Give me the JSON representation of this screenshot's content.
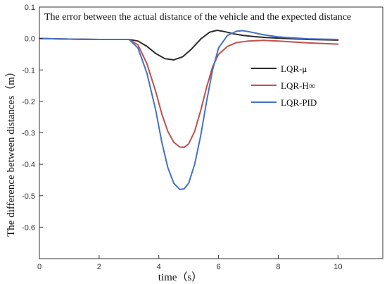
{
  "chart_data": {
    "type": "line",
    "title": "The error between the actual distance of the vehicle and the expected distance",
    "xlabel": "time（s）",
    "ylabel": "The difference between distances（m）",
    "xlim": [
      0,
      11.5
    ],
    "ylim": [
      -0.7,
      0.1
    ],
    "xticks": [
      0,
      2,
      4,
      6,
      8,
      10
    ],
    "yticks": [
      0.1,
      0.0,
      -0.1,
      -0.2,
      -0.3,
      -0.4,
      -0.5,
      -0.6
    ],
    "ytick_labels": [
      "0.1",
      "0.0",
      "-0.1",
      "-0.2",
      "-0.3",
      "-0.4",
      "-0.5",
      "-0.6"
    ],
    "grid": false,
    "legend": "center-right",
    "series": [
      {
        "name": "LQR-μ",
        "color": "#2b2b2b",
        "x": [
          0,
          1,
          2,
          3,
          3.3,
          3.6,
          3.9,
          4.2,
          4.5,
          4.8,
          5.1,
          5.4,
          5.7,
          5.95,
          6.2,
          6.5,
          6.8,
          7.2,
          7.6,
          8,
          9,
          10
        ],
        "y": [
          0,
          -0.002,
          -0.003,
          -0.003,
          -0.008,
          -0.025,
          -0.048,
          -0.064,
          -0.068,
          -0.058,
          -0.033,
          -0.002,
          0.02,
          0.026,
          0.022,
          0.015,
          0.01,
          0.006,
          0.003,
          0.001,
          -0.003,
          -0.005
        ]
      },
      {
        "name": "LQR-H∞",
        "color": "#c0504d",
        "x": [
          0,
          1,
          2,
          3,
          3.3,
          3.6,
          3.9,
          4.1,
          4.3,
          4.5,
          4.7,
          4.85,
          5.0,
          5.2,
          5.4,
          5.6,
          5.8,
          6.0,
          6.3,
          6.6,
          7.0,
          7.5,
          8,
          9,
          10
        ],
        "y": [
          0,
          -0.002,
          -0.003,
          -0.003,
          -0.02,
          -0.08,
          -0.17,
          -0.24,
          -0.295,
          -0.33,
          -0.345,
          -0.346,
          -0.335,
          -0.295,
          -0.23,
          -0.155,
          -0.09,
          -0.05,
          -0.025,
          -0.013,
          -0.008,
          -0.006,
          -0.008,
          -0.014,
          -0.018
        ]
      },
      {
        "name": "LQR-PID",
        "color": "#4472c4",
        "x": [
          0,
          1,
          2,
          3,
          3.3,
          3.6,
          3.9,
          4.1,
          4.3,
          4.5,
          4.7,
          4.85,
          5.0,
          5.2,
          5.4,
          5.6,
          5.8,
          6.0,
          6.3,
          6.6,
          6.8,
          7.0,
          7.5,
          8,
          9,
          10
        ],
        "y": [
          0,
          -0.002,
          -0.003,
          -0.003,
          -0.03,
          -0.11,
          -0.23,
          -0.33,
          -0.41,
          -0.46,
          -0.48,
          -0.478,
          -0.46,
          -0.4,
          -0.31,
          -0.2,
          -0.1,
          -0.03,
          0.01,
          0.023,
          0.025,
          0.022,
          0.012,
          0.005,
          -0.001,
          -0.003
        ]
      }
    ]
  }
}
